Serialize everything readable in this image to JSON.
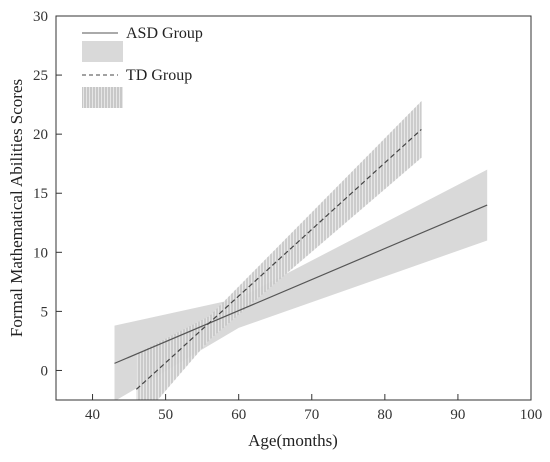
{
  "chart_data": {
    "type": "line",
    "xlabel": "Age(months)",
    "ylabel": "Formal Mathematical Abilities Scores",
    "xlim": [
      35,
      100
    ],
    "ylim": [
      -2.5,
      30
    ],
    "xticks": [
      40,
      50,
      60,
      70,
      80,
      90,
      100
    ],
    "yticks": [
      0,
      5,
      10,
      15,
      20,
      25,
      30
    ],
    "grid": false,
    "legend_position": "top-left",
    "series": [
      {
        "name": "ASD Group",
        "style": "solid",
        "color": "#555555",
        "band_style": "solid-fill",
        "band_color": "#d9d9d9",
        "x": [
          43,
          94
        ],
        "y": [
          0.6,
          14.0
        ],
        "band_lower": [
          [
            43,
            -2.6
          ],
          [
            60,
            3.6
          ],
          [
            94,
            11.0
          ]
        ],
        "band_upper": [
          [
            43,
            3.8
          ],
          [
            60,
            6.1
          ],
          [
            94,
            17.0
          ]
        ]
      },
      {
        "name": "TD Group",
        "style": "dashed",
        "color": "#444444",
        "band_style": "vertical-hatch",
        "band_color": "#999999",
        "x": [
          46,
          85
        ],
        "y": [
          -1.6,
          20.4
        ],
        "band_lower": [
          [
            46,
            -4.6
          ],
          [
            56,
            2.6
          ],
          [
            85,
            18.0
          ]
        ],
        "band_upper": [
          [
            46,
            1.4
          ],
          [
            56,
            4.6
          ],
          [
            85,
            22.8
          ]
        ]
      }
    ]
  }
}
